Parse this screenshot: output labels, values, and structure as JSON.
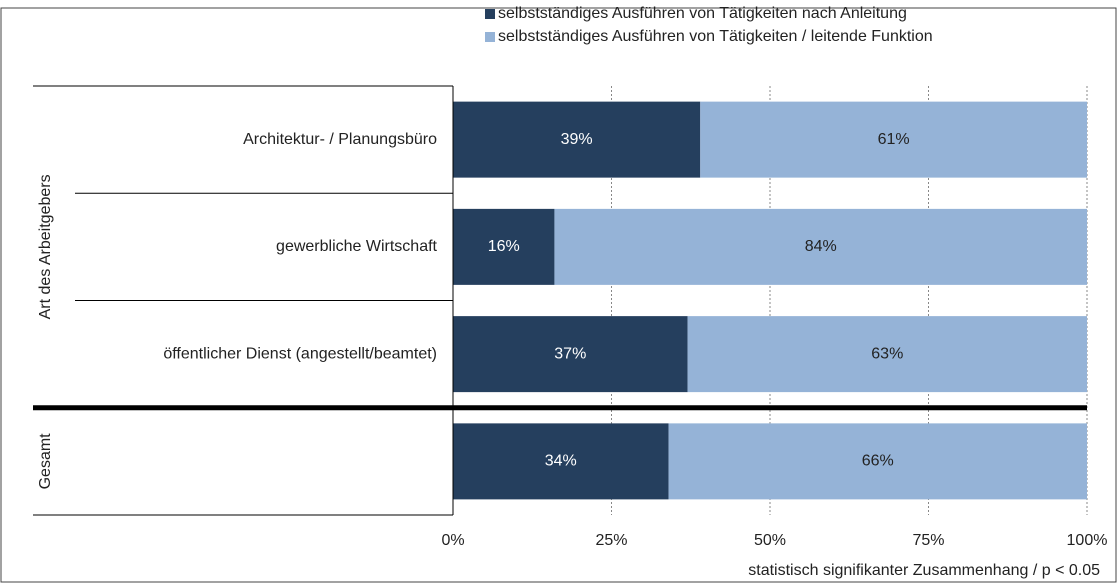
{
  "chart_data": {
    "type": "stacked-bar-horizontal",
    "groups": [
      {
        "name": "Art des Arbeitgebers",
        "categories": [
          "Architektur- / Planungsbüro",
          "gewerbliche Wirtschaft",
          "öffentlicher Dienst (angestellt/beamtet)"
        ]
      },
      {
        "name": "Gesamt",
        "categories": [
          null
        ]
      }
    ],
    "series": [
      {
        "name": "selbstständiges Ausführen von Tätigkeiten nach Anleitung",
        "color": "#253f5e",
        "label_color": "#ffffff",
        "values": [
          39,
          16,
          37,
          34
        ],
        "value_labels": [
          "39%",
          "16%",
          "37%",
          "34%"
        ]
      },
      {
        "name": "selbstständiges Ausführen von Tätigkeiten / leitende Funktion",
        "color": "#95b3d7",
        "label_color": "#222222",
        "values": [
          61,
          84,
          63,
          66
        ],
        "value_labels": [
          "61%",
          "84%",
          "63%",
          "66%"
        ]
      }
    ],
    "xlim": [
      0,
      100
    ],
    "xticks": [
      {
        "value": 0,
        "label": "0%"
      },
      {
        "value": 25,
        "label": "25%"
      },
      {
        "value": 50,
        "label": "50%"
      },
      {
        "value": 75,
        "label": "75%"
      },
      {
        "value": 100,
        "label": "100%"
      }
    ],
    "grid": true,
    "note": "statistisch signifikanter Zusammenhang / p < 0.05"
  }
}
